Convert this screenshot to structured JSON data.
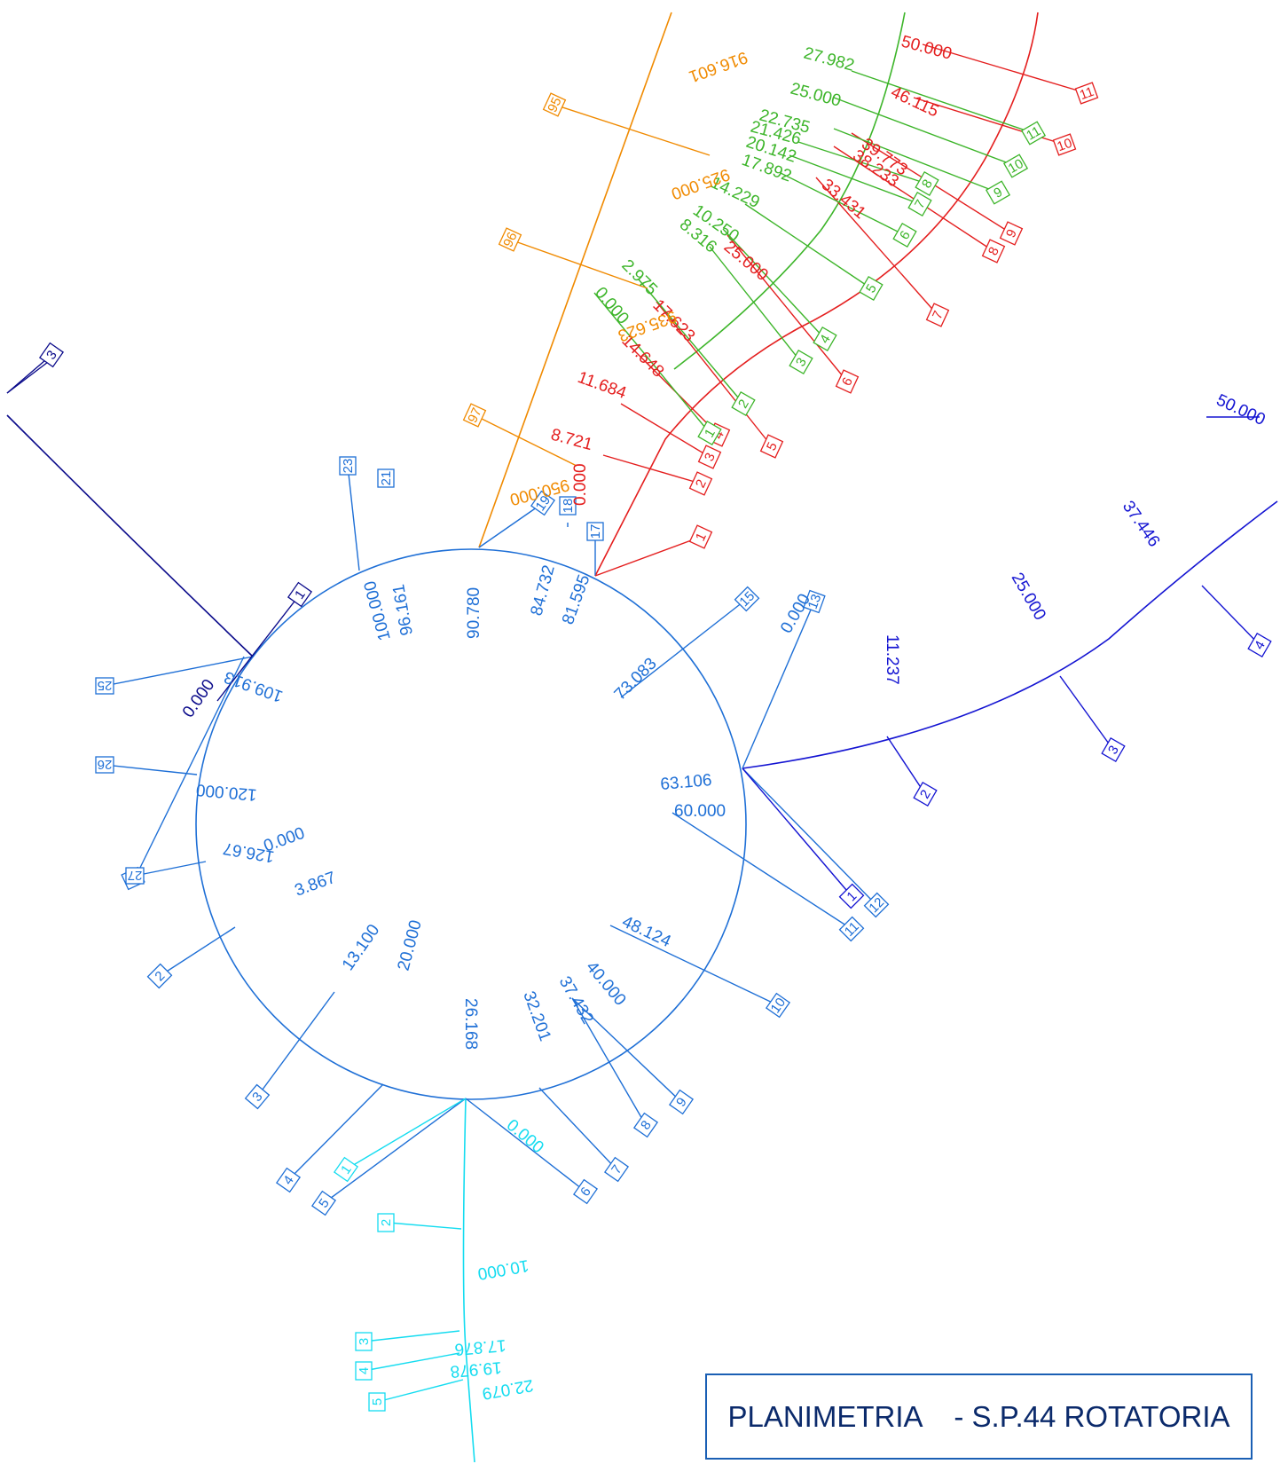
{
  "title": "PLANIMETRIA    - S.P.44 ROTATORIA",
  "colors": {
    "ring": "#1e6fd6",
    "navy": "#0a0a8a",
    "blue": "#1414d2",
    "orange": "#f08a00",
    "red": "#e41e1e",
    "green": "#3db52a",
    "cyan": "#14dcf0"
  },
  "ring_sections": [
    {
      "label": "0.000",
      "box": "1"
    },
    {
      "label": "3.867",
      "box": "2"
    },
    {
      "label": "13.100",
      "box": "3"
    },
    {
      "label": "20.000",
      "box": "4"
    },
    {
      "label": "26.168",
      "box": "5"
    },
    {
      "label": "32.201",
      "box": "7"
    },
    {
      "label": "37.432",
      "box": "8"
    },
    {
      "label": "40.000",
      "box": "9"
    },
    {
      "label": "48.124",
      "box": "10"
    },
    {
      "label": "60.000",
      "box": "11"
    },
    {
      "label": "63.106",
      "box": "12"
    },
    {
      "label": "73.083",
      "box": "15"
    },
    {
      "label": "81.595",
      "box": "17"
    },
    {
      "label": "84.732",
      "box": "18"
    },
    {
      "label": "90.780",
      "box": "19"
    },
    {
      "label": "96.161",
      "box": "21"
    },
    {
      "label": "100.000",
      "box": "23"
    },
    {
      "label": "109.913",
      "box": "25"
    },
    {
      "label": "120.000",
      "box": "26"
    },
    {
      "label": "126.67",
      "box": "27"
    },
    {
      "label": "0.000",
      "box": "13"
    },
    {
      "label": "",
      "box": "6"
    }
  ],
  "red_branch": [
    {
      "label": "0.000",
      "box": "1"
    },
    {
      "label": "8.721",
      "box": "2"
    },
    {
      "label": "11.684",
      "box": "3"
    },
    {
      "label": "14.648",
      "box": "4"
    },
    {
      "label": "17.623",
      "box": "5"
    },
    {
      "label": "25.000",
      "box": "6"
    },
    {
      "label": "33.431",
      "box": "7"
    },
    {
      "label": "38.233",
      "box": "8"
    },
    {
      "label": "39.773",
      "box": "9"
    },
    {
      "label": "46.115",
      "box": "10"
    },
    {
      "label": "50.000",
      "box": "11"
    }
  ],
  "green_branch": [
    {
      "label": "0.000",
      "box": "1"
    },
    {
      "label": "2.975",
      "box": "2"
    },
    {
      "label": "8.316",
      "box": "3"
    },
    {
      "label": "10.250",
      "box": "4"
    },
    {
      "label": "14.229",
      "box": "5"
    },
    {
      "label": "17.892",
      "box": "6"
    },
    {
      "label": "20.142",
      "box": "7"
    },
    {
      "label": "21.426",
      "box": "8"
    },
    {
      "label": "22.735",
      "box": "9"
    },
    {
      "label": "25.000",
      "box": "10"
    },
    {
      "label": "27.982",
      "box": "11"
    }
  ],
  "orange_branch": [
    {
      "label": "950.000",
      "box": "97"
    },
    {
      "label": "935.623",
      "box": "96"
    },
    {
      "label": "925.000",
      "box": "95"
    },
    {
      "label": "916.601",
      "box": ""
    }
  ],
  "blue_branch": [
    {
      "label": "11.237",
      "box": "2"
    },
    {
      "label": "25.000",
      "box": "3"
    },
    {
      "label": "37.446",
      "box": "4"
    },
    {
      "label": "50.000",
      "box": ""
    },
    {
      "label": "",
      "box": "1"
    }
  ],
  "navy_branch": [
    {
      "label": "0.000",
      "box": "1"
    },
    {
      "label": "",
      "box": "3"
    }
  ],
  "cyan_branch": [
    {
      "label": "0.000",
      "box": "1"
    },
    {
      "label": "10.000",
      "box": "2"
    },
    {
      "label": "17.876",
      "box": "3"
    },
    {
      "label": "19.978",
      "box": "4"
    },
    {
      "label": "22.079",
      "box": "5"
    }
  ]
}
